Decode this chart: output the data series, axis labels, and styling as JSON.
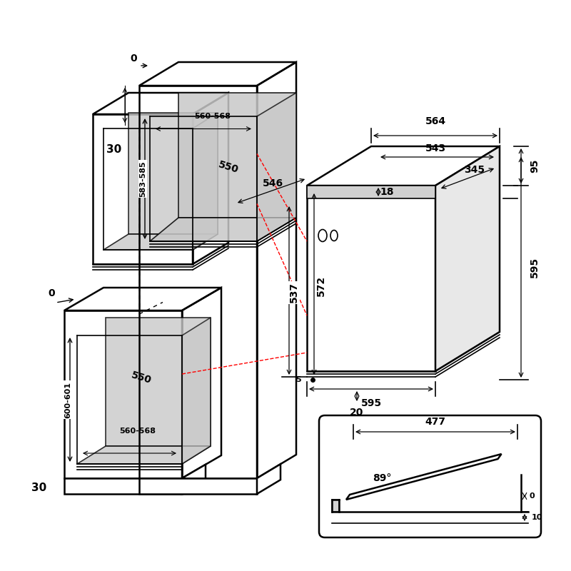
{
  "bg_color": "#ffffff",
  "line_color": "#000000",
  "gray_fill": "#c8c8c8",
  "red_dash_color": "#ff0000",
  "dim_color": "#000000",
  "annotations": {
    "top_0": "0",
    "side_30_top": "30",
    "side_0_mid": "0",
    "side_30_bot": "30",
    "upper_height": "583-585",
    "upper_width_inner": "560-568",
    "upper_depth": "550",
    "lower_height": "600-601",
    "lower_width_inner": "560-568",
    "lower_depth": "550",
    "dim_564": "564",
    "dim_543": "543",
    "dim_546": "546",
    "dim_345": "345",
    "dim_18": "18",
    "dim_95": "95",
    "dim_537": "537",
    "dim_572": "572",
    "dim_595_h": "595",
    "dim_595_w": "595",
    "dim_5": "5",
    "dim_20": "20",
    "door_477": "477",
    "door_angle": "89°",
    "door_0": "0",
    "door_10": "10"
  }
}
